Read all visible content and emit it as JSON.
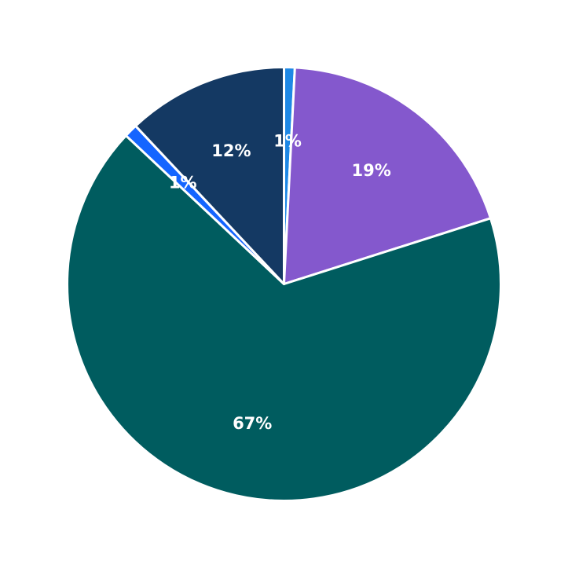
{
  "chart_data": {
    "type": "pie",
    "title": "",
    "start_angle_deg": 90,
    "direction": "clockwise",
    "slices": [
      {
        "label": "1%",
        "value": 0.8,
        "color": "#1e88e5"
      },
      {
        "label": "19%",
        "value": 19.3,
        "color": "#8458cd"
      },
      {
        "label": "67%",
        "value": 66.9,
        "color": "#005c5f"
      },
      {
        "label": "1%",
        "value": 1.0,
        "color": "#1565ff"
      },
      {
        "label": "12%",
        "value": 12.0,
        "color": "#143963"
      }
    ]
  }
}
